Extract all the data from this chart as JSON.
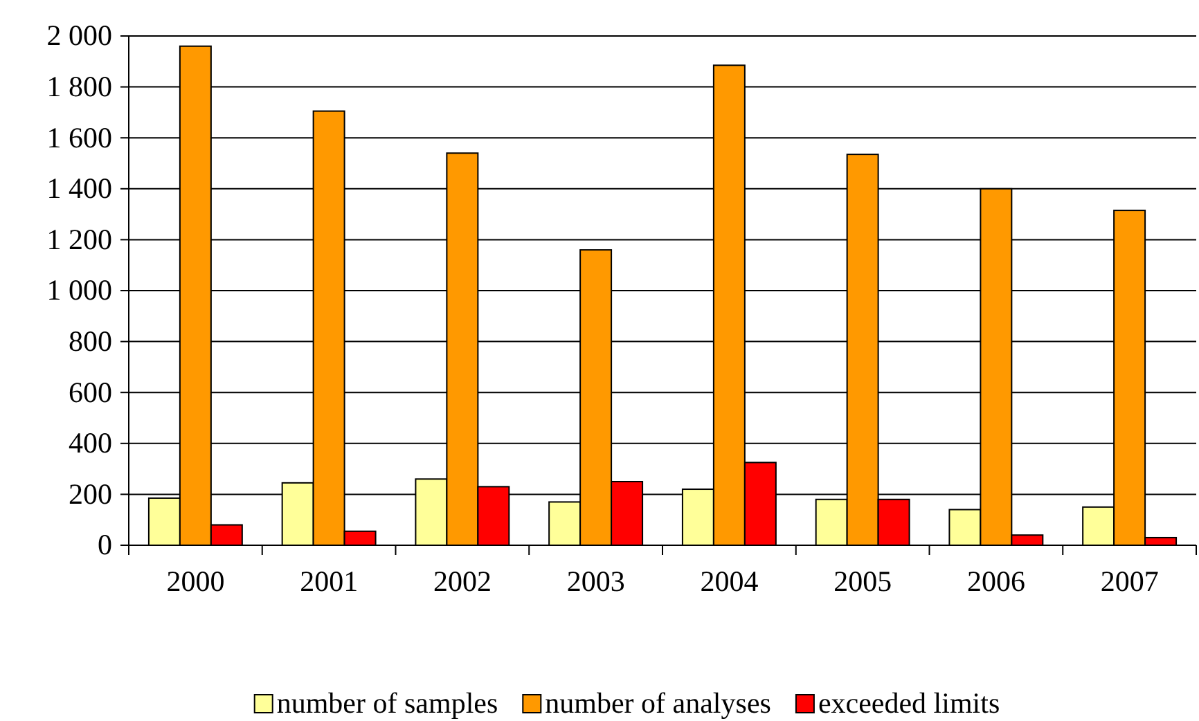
{
  "chart_data": {
    "type": "bar",
    "categories": [
      "2000",
      "2001",
      "2002",
      "2003",
      "2004",
      "2005",
      "2006",
      "2007"
    ],
    "series": [
      {
        "name": "number of samples",
        "color": "#ffff99",
        "values": [
          185,
          245,
          260,
          170,
          220,
          180,
          140,
          150
        ]
      },
      {
        "name": "number of analyses",
        "color": "#ff9900",
        "values": [
          1960,
          1705,
          1540,
          1160,
          1885,
          1535,
          1400,
          1315
        ]
      },
      {
        "name": "exceeded limits",
        "color": "#ff0000",
        "values": [
          80,
          55,
          230,
          250,
          325,
          180,
          40,
          30
        ]
      }
    ],
    "ylim": [
      0,
      2000
    ],
    "yticks": [
      0,
      200,
      400,
      600,
      800,
      {
        "value": 1000,
        "label": "1 000"
      },
      {
        "value": 1200,
        "label": "1 200"
      },
      {
        "value": 1400,
        "label": "1 400"
      },
      {
        "value": 1600,
        "label": "1 600"
      },
      {
        "value": 1800,
        "label": "1 800"
      },
      {
        "value": 2000,
        "label": "2 000"
      }
    ],
    "grid": "y",
    "legend": "bottom"
  }
}
